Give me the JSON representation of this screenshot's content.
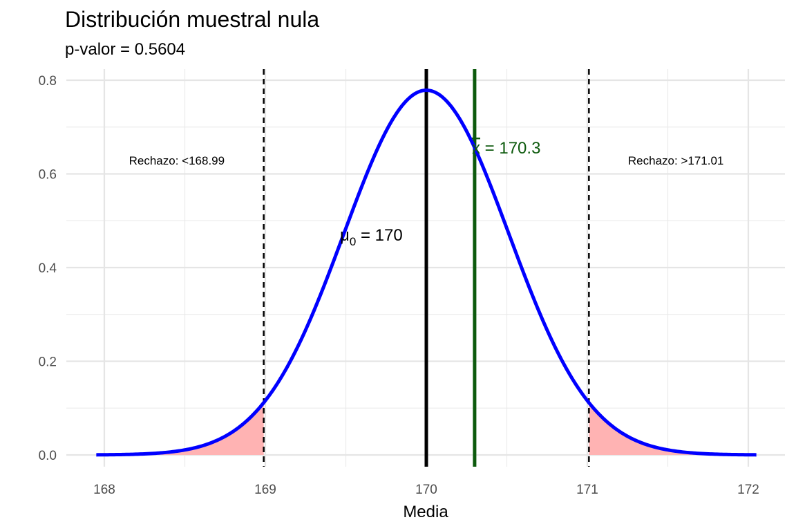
{
  "title": "Distribución muestral nula",
  "subtitle": "p-valor = 0.5604",
  "chart_data": {
    "type": "area",
    "title": "Distribución muestral nula",
    "subtitle": "p-valor = 0.5604",
    "xlabel": "Media",
    "ylabel": "",
    "xlim": [
      167.95,
      172.05
    ],
    "ylim": [
      0,
      0.8
    ],
    "x_ticks": [
      "168",
      "169",
      "170",
      "171",
      "172"
    ],
    "x_tick_values": [
      168,
      169,
      170,
      171,
      172
    ],
    "y_ticks": [
      "0.0",
      "0.2",
      "0.4",
      "0.6",
      "0.8"
    ],
    "y_tick_values": [
      0,
      0.2,
      0.4,
      0.6,
      0.8
    ],
    "grid": true,
    "curve": {
      "distribution": "normal",
      "mean": 170,
      "sd": 0.5124,
      "x_range": [
        167.95,
        172.05
      ],
      "color": "#0000ff"
    },
    "critical_values": [
      168.99,
      171.01
    ],
    "rejection_fill": "#ffb3b3",
    "mu0": {
      "value": 170,
      "symbol": "μ",
      "subscript": "0",
      "text": " = 170",
      "color": "#000000"
    },
    "xbar": {
      "value": 170.3,
      "symbol": "x",
      "text": " = 170.3",
      "color": "#0d5a0d"
    },
    "annotations": [
      {
        "text": "Rechazo: <168.99",
        "x": 168.45,
        "y": 0.62
      },
      {
        "text": "Rechazo: >171.01",
        "x": 171.55,
        "y": 0.62
      }
    ]
  }
}
